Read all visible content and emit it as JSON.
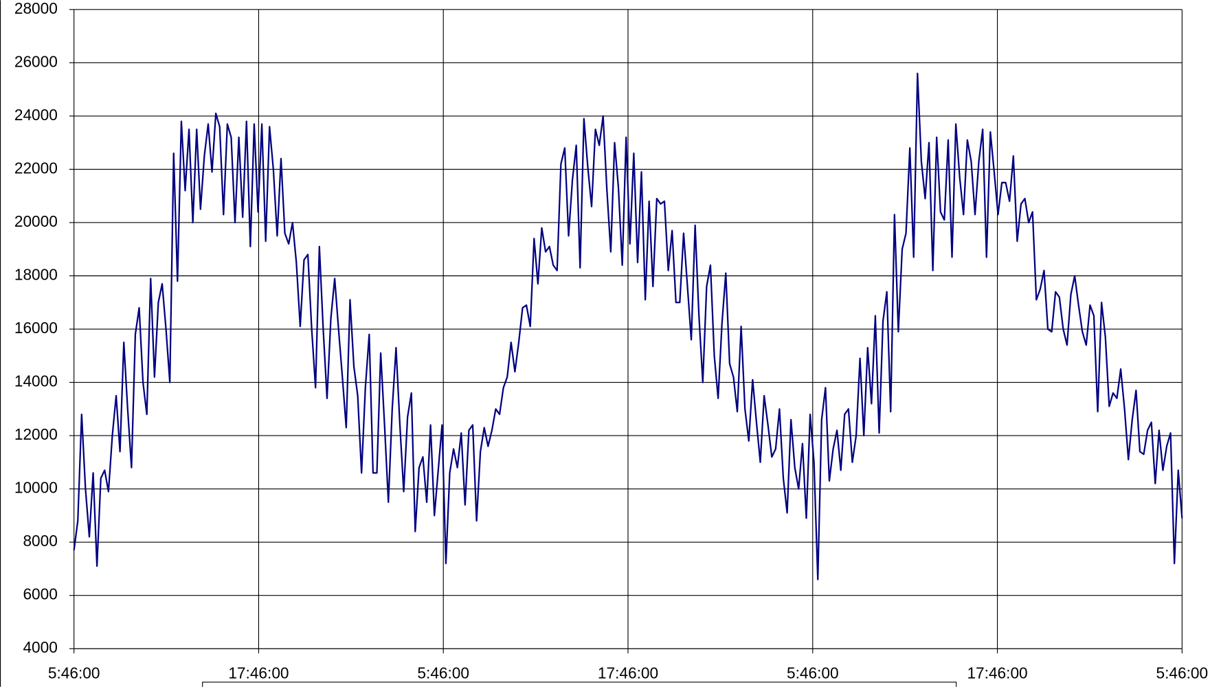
{
  "chart_data": {
    "type": "line",
    "color": "#000080",
    "grid": true,
    "ylim": [
      4000,
      28000
    ],
    "yticks": [
      4000,
      6000,
      8000,
      10000,
      12000,
      14000,
      16000,
      18000,
      20000,
      22000,
      24000,
      26000,
      28000
    ],
    "xticks": [
      "5:46:00",
      "17:46:00",
      "5:46:00",
      "17:46:00",
      "5:46:00",
      "17:46:00",
      "5:46:00"
    ],
    "values": [
      7700,
      8800,
      12800,
      10000,
      8200,
      10600,
      7100,
      10400,
      10700,
      9900,
      12000,
      13500,
      11400,
      15500,
      13000,
      10800,
      15800,
      16800,
      14000,
      12800,
      17900,
      14200,
      17000,
      17700,
      16000,
      14000,
      22600,
      17800,
      23800,
      21200,
      23500,
      20000,
      23500,
      20500,
      22500,
      23700,
      21900,
      24100,
      23600,
      20300,
      23700,
      23200,
      20000,
      23200,
      20200,
      23800,
      19100,
      23700,
      20400,
      23700,
      19300,
      23600,
      22000,
      19500,
      22400,
      19600,
      19200,
      20000,
      18500,
      16100,
      18600,
      18800,
      16000,
      13800,
      19100,
      16000,
      13400,
      16400,
      17900,
      16000,
      14200,
      12300,
      17100,
      14600,
      13500,
      10600,
      13800,
      15800,
      10600,
      10600,
      15100,
      12400,
      9500,
      13000,
      15300,
      12400,
      9900,
      12700,
      13600,
      8400,
      10800,
      11200,
      9500,
      12400,
      9000,
      10700,
      12400,
      7200,
      10600,
      11500,
      10800,
      12100,
      9400,
      12200,
      12400,
      8800,
      11400,
      12300,
      11600,
      12200,
      13000,
      12800,
      13800,
      14200,
      15500,
      14400,
      15500,
      16800,
      16900,
      16100,
      19400,
      17700,
      19800,
      18900,
      19100,
      18400,
      18200,
      22200,
      22800,
      19500,
      21600,
      22900,
      18300,
      23900,
      22100,
      20600,
      23500,
      22900,
      24000,
      21200,
      18900,
      23000,
      21300,
      18400,
      23200,
      19200,
      22600,
      18500,
      21900,
      17100,
      20800,
      17600,
      20900,
      20700,
      20800,
      18200,
      19700,
      17000,
      17000,
      19600,
      17600,
      15600,
      19900,
      16500,
      14000,
      17600,
      18400,
      15000,
      13400,
      16200,
      18100,
      14700,
      14200,
      12900,
      16100,
      13000,
      11800,
      14100,
      12500,
      11000,
      13500,
      12400,
      11200,
      11500,
      13000,
      10400,
      9100,
      12600,
      10800,
      10000,
      11700,
      8900,
      12800,
      11000,
      6600,
      12600,
      13800,
      10300,
      11500,
      12200,
      10700,
      12800,
      13000,
      11000,
      12000,
      14900,
      12000,
      15300,
      13200,
      16500,
      12100,
      16300,
      17400,
      12900,
      20300,
      15900,
      19000,
      19600,
      22800,
      18700,
      25600,
      22300,
      20900,
      23000,
      18200,
      23200,
      20400,
      20100,
      23100,
      18700,
      23700,
      21700,
      20300,
      23100,
      22300,
      20300,
      22300,
      23500,
      18700,
      23400,
      21900,
      20300,
      21500,
      21500,
      20800,
      22500,
      19300,
      20700,
      20900,
      20000,
      20400,
      17100,
      17500,
      18200,
      16000,
      15900,
      17400,
      17200,
      16000,
      15400,
      17300,
      18000,
      16900,
      15900,
      15400,
      16900,
      16500,
      12900,
      17000,
      15700,
      13100,
      13600,
      13400,
      14500,
      13000,
      11100,
      12600,
      13700,
      11400,
      11300,
      12200,
      12500,
      10200,
      12200,
      10700,
      11600,
      12100,
      7200,
      10700,
      8900
    ]
  }
}
